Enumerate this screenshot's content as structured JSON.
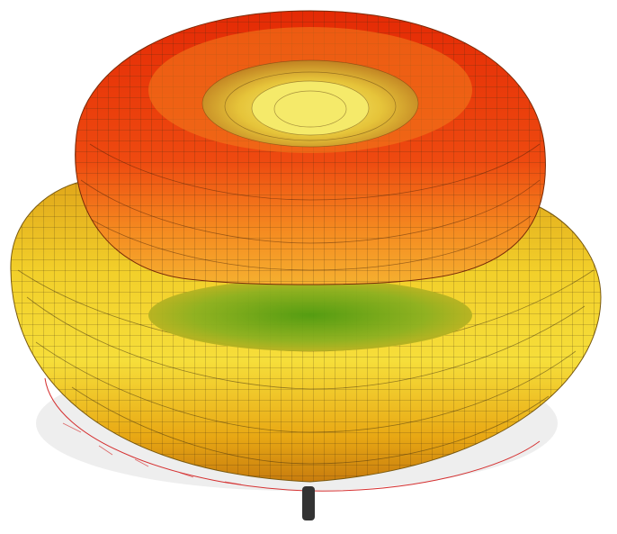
{
  "colors": {
    "background": "#ffffff",
    "upper_lobe_hot": "#e42a05",
    "upper_lobe_mid": "#f27a1a",
    "upper_lobe_warm": "#f5a12a",
    "inner_cone": "#e6d23c",
    "lower_lobe_light": "#f2e253",
    "lower_lobe_mid": "#f0c21d",
    "lower_lobe_dark": "#c88a10",
    "lower_lobe_orange": "#e79a16",
    "core_green": "#5fa613",
    "mesh_line": "#3a2a10",
    "base_disc": "#dcdcdc",
    "base_outline": "#d53030",
    "stem": "#333333"
  },
  "shapes": [
    "upper-lobe",
    "lower-lobe",
    "inner-cone",
    "base-disc",
    "stem"
  ]
}
